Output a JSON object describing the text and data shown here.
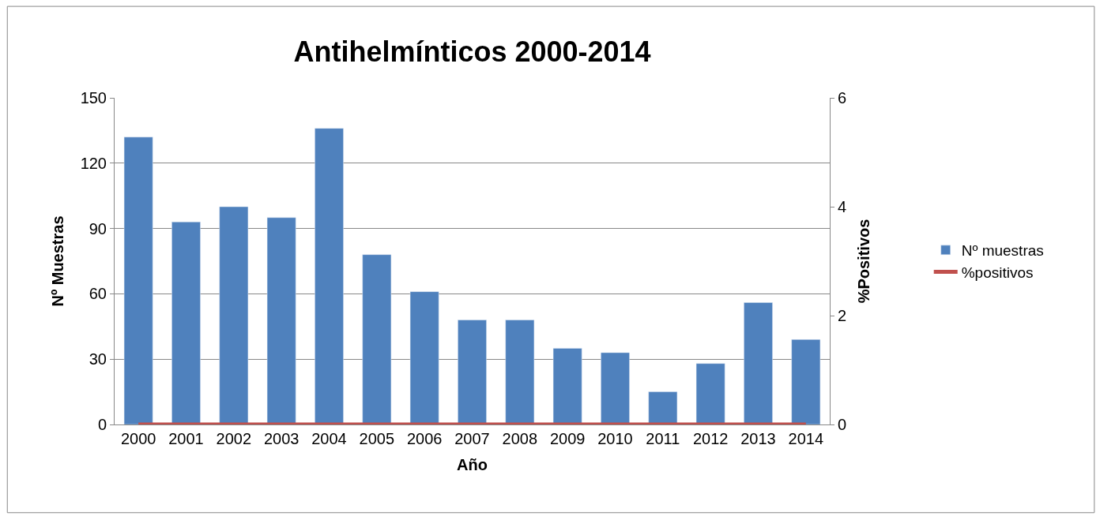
{
  "chart_data": {
    "type": "bar",
    "title": "Antihelmínticos 2000-2014",
    "xlabel": "Año",
    "ylabel": "Nº Muestras",
    "y2label": "%Positivos",
    "categories": [
      "2000",
      "2001",
      "2002",
      "2003",
      "2004",
      "2005",
      "2006",
      "2007",
      "2008",
      "2009",
      "2010",
      "2011",
      "2012",
      "2013",
      "2014"
    ],
    "series": [
      {
        "name": "Nº muestras",
        "color": "#4f81bd",
        "values": [
          132,
          93,
          100,
          95,
          136,
          78,
          61,
          48,
          48,
          35,
          33,
          15,
          28,
          56,
          39
        ]
      },
      {
        "name": "%positivos",
        "type": "line",
        "axis": "y2",
        "color": "#c0504d",
        "marker": "none",
        "values": [
          0,
          0,
          0,
          0,
          0,
          0,
          0,
          0,
          0,
          0,
          0,
          0,
          0,
          0,
          0
        ]
      }
    ],
    "ylim": [
      0,
      150
    ],
    "yticks": [
      0,
      30,
      60,
      90,
      120,
      150
    ],
    "y2lim": [
      0,
      6
    ],
    "y2ticks": [
      0,
      2,
      4,
      6
    ],
    "grid": "y",
    "legend": "right"
  }
}
